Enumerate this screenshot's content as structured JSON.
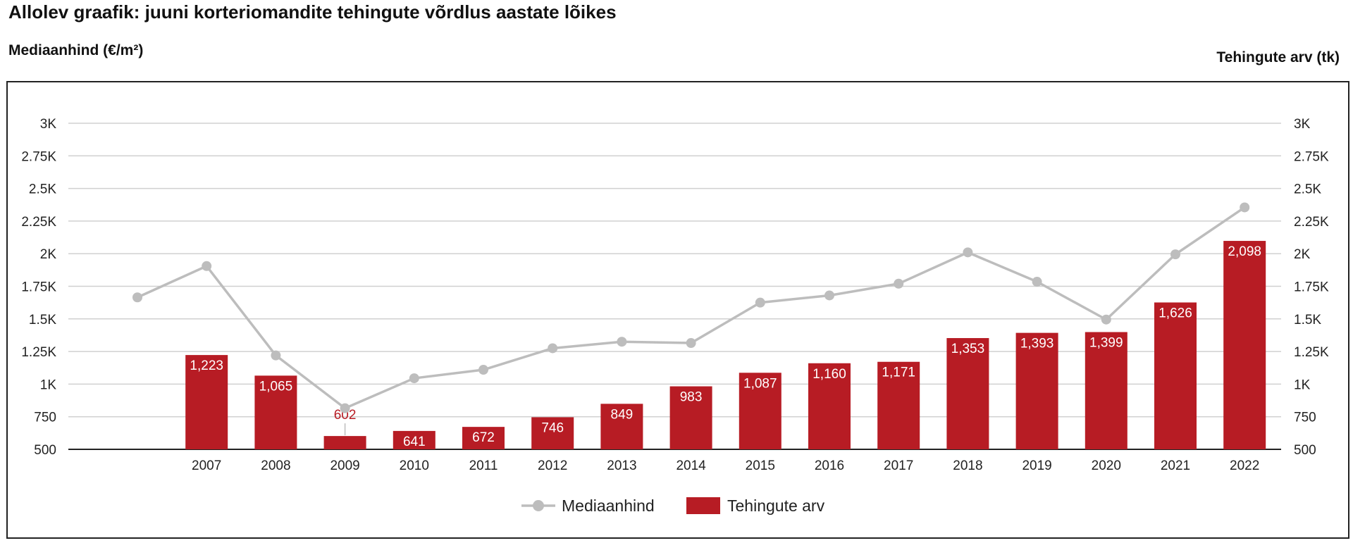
{
  "header": {
    "title": "Allolev graafik: juuni korteriomandite tehingute võrdlus aastate lõikes",
    "left_axis_label": "Mediaanhind (€/m²)",
    "right_axis_label": "Tehingute arv (tk)"
  },
  "colors": {
    "bar": "#b71c24",
    "line": "#bdbdbd",
    "grid": "#d0d0d0",
    "axis": "#222222",
    "bar_label_inside": "#ffffff",
    "bar_label_outside": "#b71c24"
  },
  "chart_data": {
    "type": "bar+line",
    "categories": [
      "",
      "2007",
      "2008",
      "2009",
      "2010",
      "2011",
      "2012",
      "2013",
      "2014",
      "2015",
      "2016",
      "2017",
      "2018",
      "2019",
      "2020",
      "2021",
      "2022"
    ],
    "series": [
      {
        "name": "Mediaanhind",
        "kind": "line",
        "axis": "left",
        "values": [
          1665,
          1905,
          1220,
          815,
          1045,
          1110,
          1275,
          1325,
          1315,
          1625,
          1680,
          1770,
          2010,
          1785,
          1495,
          1995,
          2355
        ]
      },
      {
        "name": "Tehingute arv",
        "kind": "bar",
        "axis": "right",
        "values": [
          null,
          1223,
          1065,
          602,
          641,
          672,
          746,
          849,
          983,
          1087,
          1160,
          1171,
          1353,
          1393,
          1399,
          1626,
          2098
        ],
        "labels": [
          "",
          "1,223",
          "1,065",
          "602",
          "641",
          "672",
          "746",
          "849",
          "983",
          "1,087",
          "1,160",
          "1,171",
          "1,353",
          "1,393",
          "1,399",
          "1,626",
          "2,098"
        ]
      }
    ],
    "ylim": [
      500,
      3000
    ],
    "yticks": [
      500,
      750,
      1000,
      1250,
      1500,
      1750,
      2000,
      2250,
      2500,
      2750,
      3000
    ],
    "ytick_labels": [
      "500",
      "750",
      "1K",
      "1.25K",
      "1.5K",
      "1.75K",
      "2K",
      "2.25K",
      "2.5K",
      "2.75K",
      "3K"
    ],
    "grid": true,
    "legend_position": "bottom-center",
    "legend": [
      "Mediaanhind",
      "Tehingute arv"
    ]
  }
}
